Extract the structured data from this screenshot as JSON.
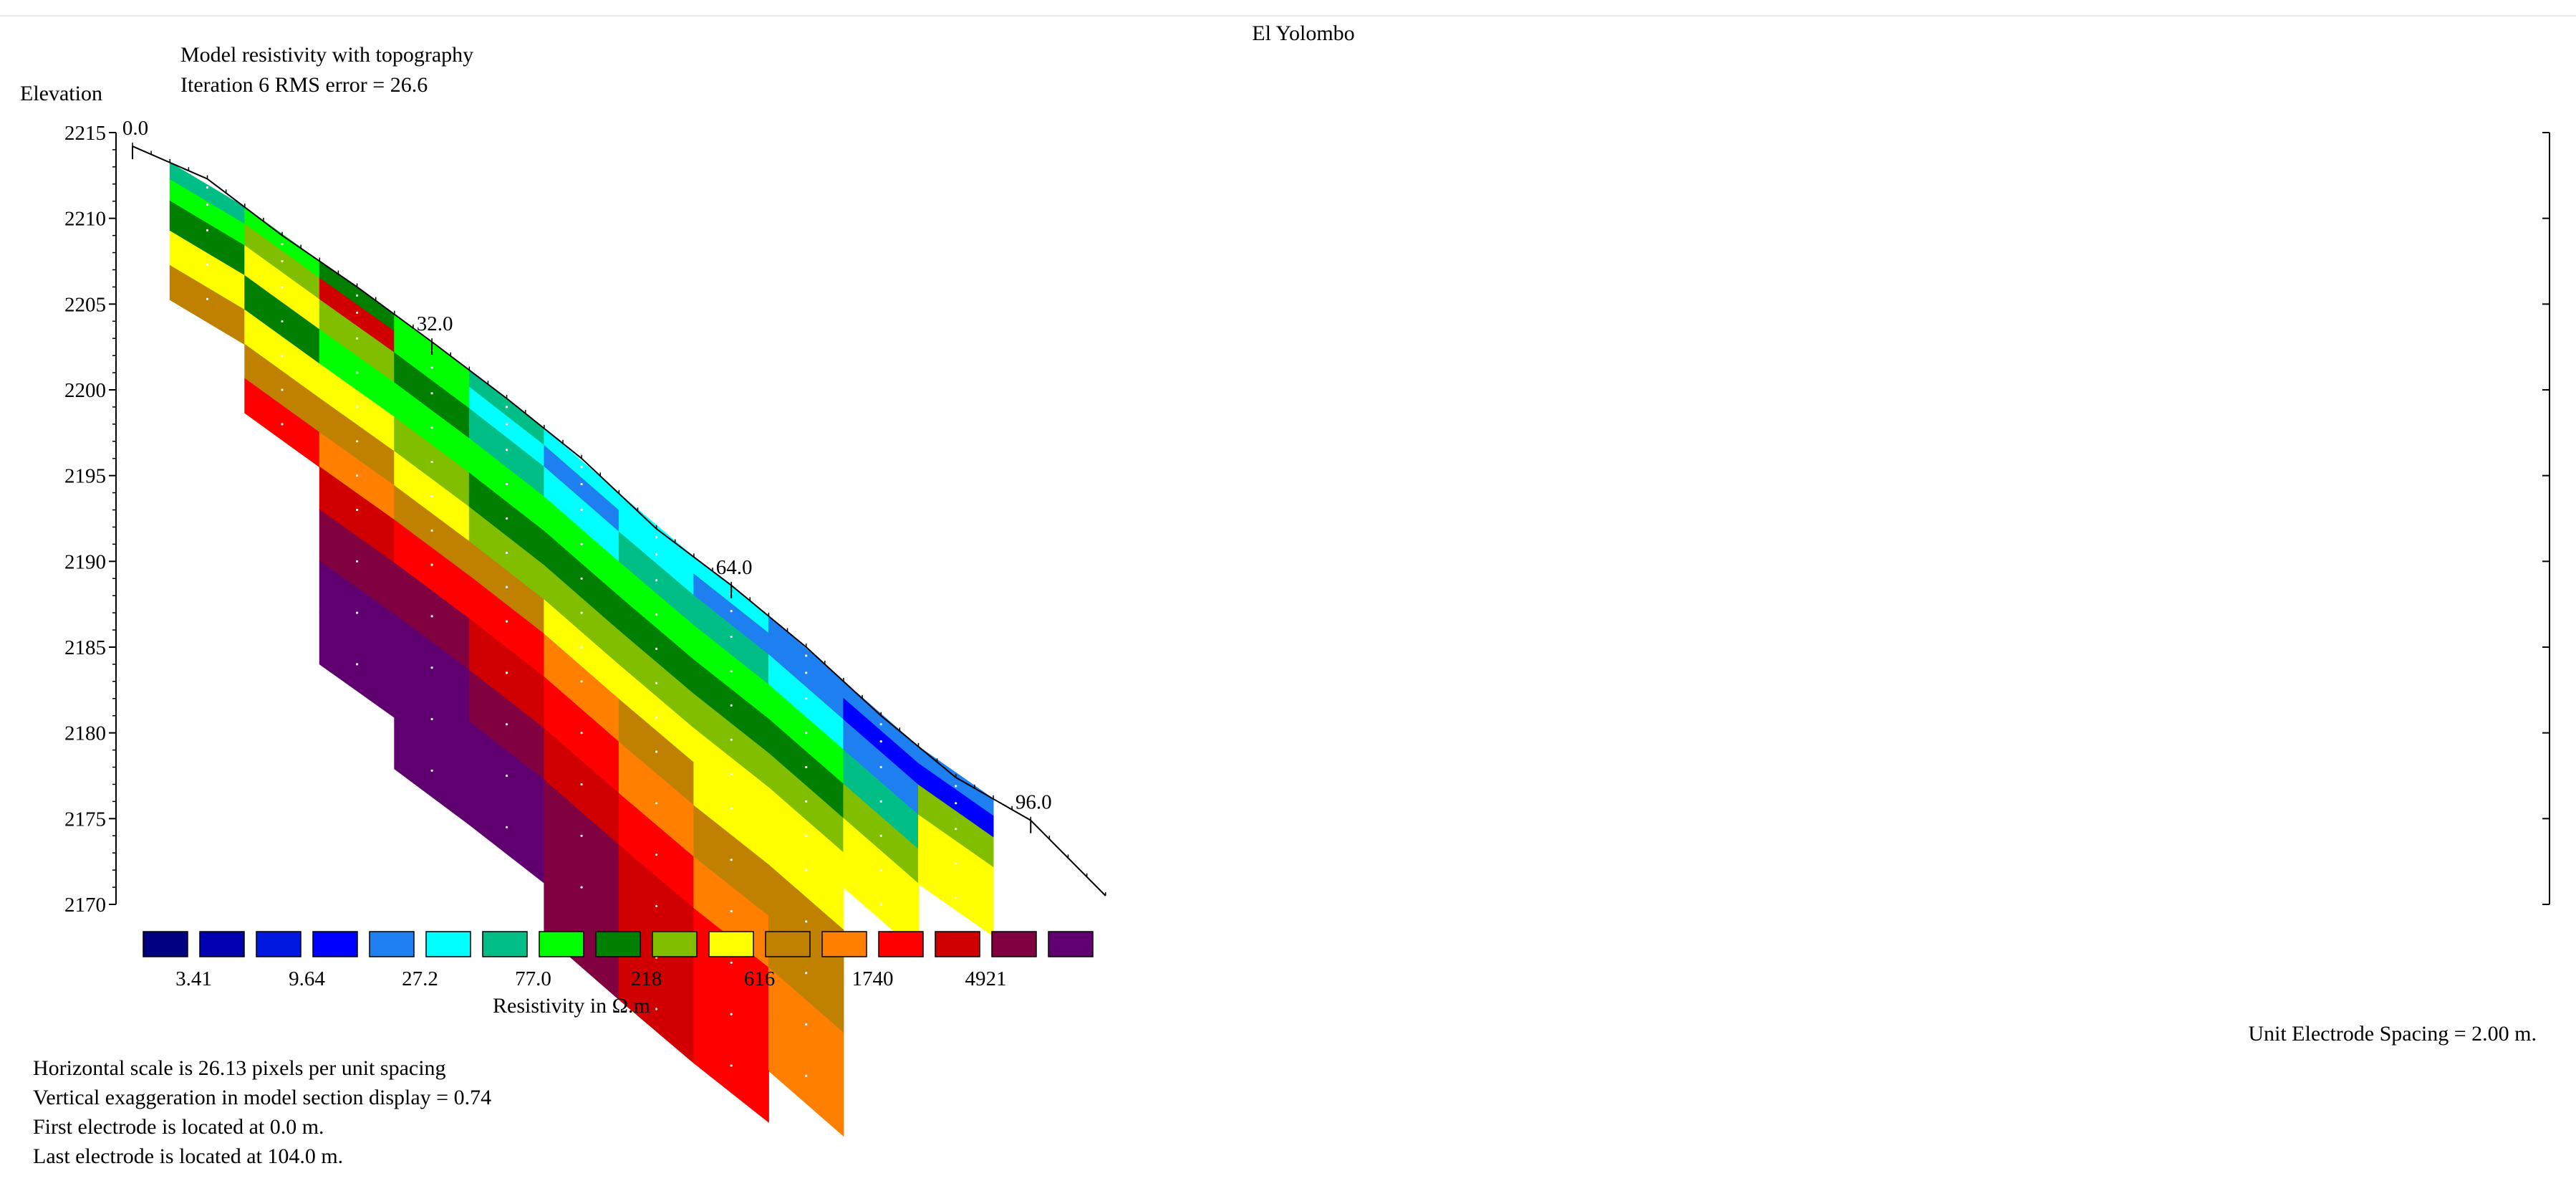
{
  "header": {
    "title": "El Yolombo",
    "subtitle_line1": "Model resistivity with topography",
    "subtitle_line2": "Iteration 6 RMS error = 26.6"
  },
  "chart_data": {
    "type": "heatmap",
    "title": "El Yolombo",
    "ylabel": "Elevation",
    "ylim": [
      2170,
      2215
    ],
    "yticks": [
      "2215",
      "2210",
      "2205",
      "2200",
      "2195",
      "2190",
      "2185",
      "2180",
      "2175",
      "2170"
    ],
    "xlim": [
      0,
      104
    ],
    "distance_labels": [
      "0.0",
      "32.0",
      "64.0",
      "96.0"
    ],
    "topography": {
      "x": [
        0,
        8,
        16,
        24,
        32,
        40,
        48,
        56,
        64,
        72,
        80,
        88,
        96,
        104
      ],
      "elevation": [
        2214.2,
        2212.3,
        2209.0,
        2206.0,
        2202.8,
        2199.5,
        2196.0,
        2191.9,
        2188.6,
        2185.0,
        2181.0,
        2177.4,
        2174.9,
        2170.5
      ]
    },
    "color_scale": {
      "label": "Resistivity in Ω.m",
      "tick_labels": [
        "3.41",
        "9.64",
        "27.2",
        "77.0",
        "218",
        "616",
        "1740",
        "4921"
      ],
      "colors": [
        "#000080",
        "#0000B0",
        "#0018E0",
        "#0000FF",
        "#1E7FF0",
        "#00FFFF",
        "#00BE86",
        "#00FF00",
        "#007F00",
        "#82BE00",
        "#FFFF00",
        "#C08000",
        "#FF7F00",
        "#FF0000",
        "#D00000",
        "#800040",
        "#600070"
      ]
    },
    "model": {
      "x": [
        8,
        16,
        24,
        32,
        40,
        48,
        56,
        64,
        72,
        80,
        88
      ],
      "depth": [
        0.5,
        1.5,
        3,
        5,
        7,
        9,
        11,
        13,
        16,
        19,
        22,
        25,
        28
      ],
      "resistivity_ohm_m": [
        [
          40,
          70,
          90,
          60,
          30,
          20,
          25,
          20,
          15,
          10,
          15
        ],
        [
          50,
          160,
          1800,
          55,
          18,
          14,
          22,
          12,
          15,
          6,
          6
        ],
        [
          100,
          280,
          180,
          80,
          30,
          25,
          30,
          30,
          25,
          10,
          200
        ],
        [
          250,
          120,
          70,
          60,
          60,
          55,
          60,
          55,
          50,
          45,
          260
        ],
        [
          400,
          300,
          250,
          130,
          110,
          110,
          105,
          100,
          110,
          150,
          300
        ],
        [
          0,
          600,
          450,
          250,
          190,
          210,
          190,
          170,
          150,
          250,
          0
        ],
        [
          0,
          1500,
          800,
          550,
          420,
          350,
          300,
          260,
          260,
          300,
          0
        ],
        [
          0,
          0,
          2200,
          1700,
          1100,
          700,
          450,
          350,
          300,
          0,
          0
        ],
        [
          0,
          0,
          3500,
          3200,
          2200,
          1200,
          700,
          450,
          400,
          0,
          0
        ],
        [
          0,
          0,
          6500,
          6000,
          4000,
          2200,
          1300,
          700,
          500,
          0,
          0
        ],
        [
          0,
          0,
          9000,
          9000,
          7000,
          3800,
          2200,
          1200,
          700,
          0,
          0
        ],
        [
          0,
          0,
          0,
          7000,
          6000,
          3500,
          2000,
          1200,
          700,
          0,
          0
        ],
        [
          0,
          0,
          0,
          0,
          0,
          3000,
          2000,
          1200,
          0,
          0,
          0
        ]
      ]
    }
  },
  "footer": {
    "unit_spacing": "Unit Electrode Spacing = 2.00 m.",
    "hscale": "Horizontal scale is 26.13 pixels per unit spacing",
    "vexag": "Vertical exaggeration in model section display = 0.74",
    "first_electrode": "First electrode is located at 0.0  m.",
    "last_electrode": "Last electrode is located at 104.0 m."
  }
}
